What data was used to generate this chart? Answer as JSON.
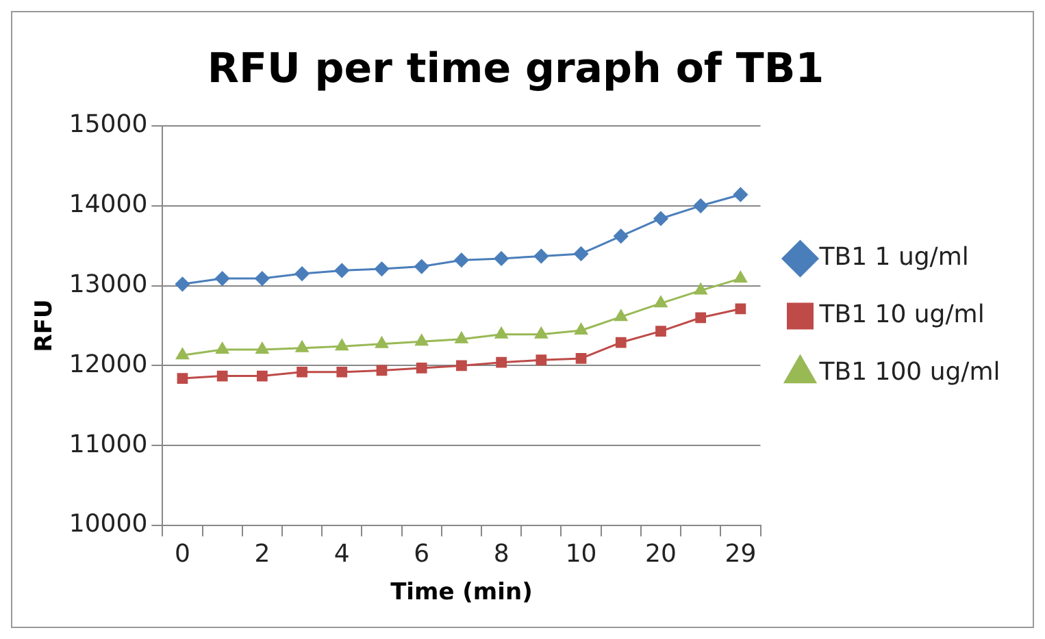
{
  "chart_data": {
    "type": "line",
    "title": "RFU per time graph of TB1",
    "xlabel": "Time (min)",
    "ylabel": "RFU",
    "categories": [
      "0",
      null,
      "2",
      null,
      "4",
      null,
      "6",
      null,
      "8",
      null,
      "10",
      null,
      "20",
      null,
      "29"
    ],
    "series": [
      {
        "name": "TB1 1 ug/ml",
        "color": "#4a7ebb",
        "marker": "diamond",
        "values": [
          13020,
          13090,
          13090,
          13150,
          13190,
          13210,
          13240,
          13320,
          13340,
          13370,
          13400,
          13620,
          13840,
          14000,
          14140
        ]
      },
      {
        "name": "TB1 10 ug/ml",
        "color": "#be4b48",
        "marker": "square",
        "values": [
          11840,
          11870,
          11870,
          11920,
          11920,
          11940,
          11970,
          12000,
          12040,
          12070,
          12090,
          12290,
          12430,
          12600,
          12710
        ]
      },
      {
        "name": "TB1 100 ug/ml",
        "color": "#98b954",
        "marker": "triangle",
        "values": [
          12130,
          12200,
          12200,
          12220,
          12240,
          12270,
          12300,
          12330,
          12390,
          12390,
          12440,
          12610,
          12780,
          12940,
          13090
        ]
      }
    ],
    "ylim": [
      10000,
      15000
    ],
    "yticks": [
      10000,
      11000,
      12000,
      13000,
      14000,
      15000
    ],
    "grid": "y",
    "legend": "right",
    "line_style": "solid"
  }
}
